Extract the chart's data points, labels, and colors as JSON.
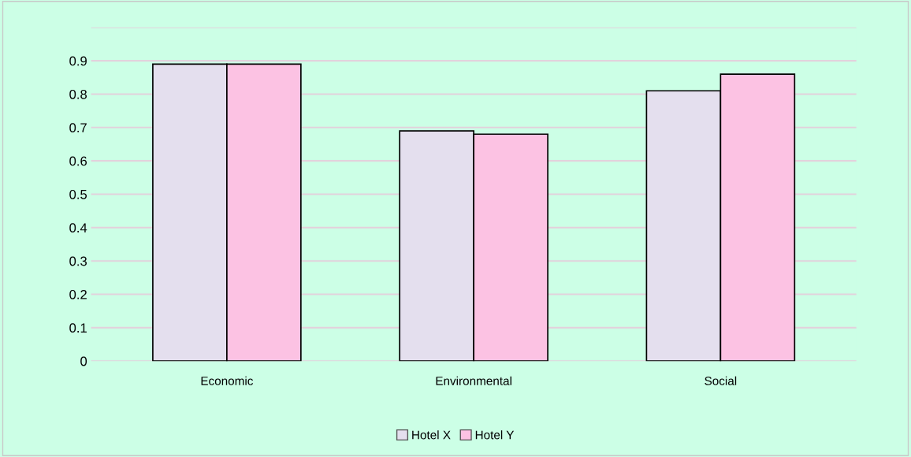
{
  "chart_data": {
    "type": "bar",
    "categories": [
      "Economic",
      "Environmental",
      "Social"
    ],
    "series": [
      {
        "name": "Hotel X",
        "color": "#e4dfee",
        "values": [
          0.89,
          0.69,
          0.81
        ]
      },
      {
        "name": "Hotel Y",
        "color": "#fcc2e3",
        "values": [
          0.89,
          0.68,
          0.86
        ]
      }
    ],
    "ylim": [
      0,
      1
    ],
    "yticks": [
      0,
      0.1,
      0.2,
      0.3,
      0.4,
      0.5,
      0.6,
      0.7,
      0.8,
      0.9,
      {
        "value": 1,
        "label": null
      }
    ],
    "grid": "y",
    "legend": "bottom"
  }
}
